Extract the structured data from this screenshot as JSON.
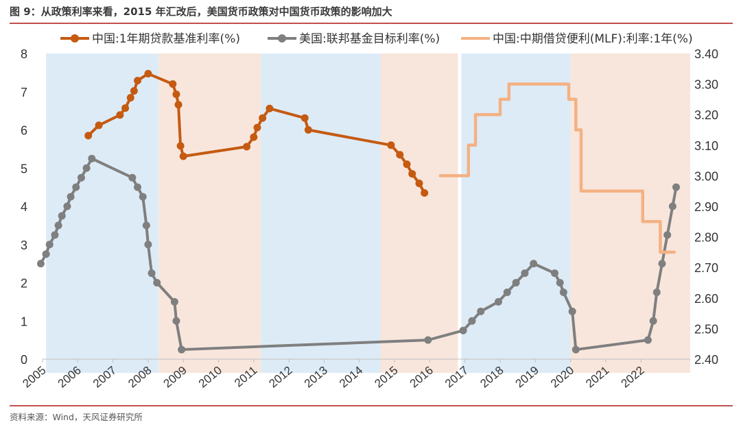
{
  "page": {
    "title": "图 9：从政策利率来看，2015 年汇改后，美国货币政策对中国货币政策的影响加大",
    "source": "资料来源：Wind，天风证券研究所"
  },
  "chart_data": {
    "type": "line",
    "title": "图 9：从政策利率来看，2015 年汇改后，美国货币政策对中国货币政策的影响加大",
    "x_ticks": [
      "2005",
      "2006",
      "2007",
      "2008",
      "2009",
      "2010",
      "2011",
      "2012",
      "2013",
      "2014",
      "2015",
      "2016",
      "2017",
      "2018",
      "2019",
      "2020",
      "2021",
      "2022"
    ],
    "y_left": {
      "range": [
        0,
        8
      ],
      "ticks": [
        "0",
        "1",
        "2",
        "3",
        "4",
        "5",
        "6",
        "7",
        "8"
      ]
    },
    "y_right": {
      "range": [
        2.4,
        3.4
      ],
      "ticks": [
        "2.40",
        "2.50",
        "2.60",
        "2.70",
        "2.80",
        "2.90",
        "3.00",
        "3.10",
        "3.20",
        "3.30",
        "3.40"
      ]
    },
    "shaded_periods": [
      {
        "start": 2005.1,
        "end": 2008.3,
        "color": "#ddebf7"
      },
      {
        "start": 2008.3,
        "end": 2011.2,
        "color": "#f8e6dc"
      },
      {
        "start": 2011.2,
        "end": 2014.6,
        "color": "#ddebf7"
      },
      {
        "start": 2014.6,
        "end": 2016.8,
        "color": "#f8e6dc"
      },
      {
        "start": 2016.9,
        "end": 2020.0,
        "color": "#ddebf7"
      },
      {
        "start": 2020.0,
        "end": 2023.4,
        "color": "#f8e6dc"
      }
    ],
    "legend_position": "top",
    "series": [
      {
        "name": "中国:1年期贷款基准利率(%)",
        "axis": "left",
        "color": "#c55a11",
        "markers": true,
        "points": [
          [
            2006.3,
            5.85
          ],
          [
            2006.6,
            6.12
          ],
          [
            2007.2,
            6.39
          ],
          [
            2007.35,
            6.57
          ],
          [
            2007.5,
            6.84
          ],
          [
            2007.6,
            7.02
          ],
          [
            2007.7,
            7.29
          ],
          [
            2008.0,
            7.47
          ],
          [
            2008.7,
            7.2
          ],
          [
            2008.8,
            6.93
          ],
          [
            2008.86,
            6.66
          ],
          [
            2008.92,
            5.58
          ],
          [
            2009.0,
            5.31
          ],
          [
            2010.8,
            5.56
          ],
          [
            2011.0,
            5.81
          ],
          [
            2011.1,
            6.06
          ],
          [
            2011.25,
            6.31
          ],
          [
            2011.45,
            6.56
          ],
          [
            2012.45,
            6.31
          ],
          [
            2012.55,
            6.0
          ],
          [
            2014.9,
            5.6
          ],
          [
            2015.15,
            5.35
          ],
          [
            2015.35,
            5.1
          ],
          [
            2015.5,
            4.85
          ],
          [
            2015.7,
            4.6
          ],
          [
            2015.85,
            4.35
          ]
        ]
      },
      {
        "name": "美国:联邦基金目标利率(%)",
        "axis": "left",
        "color": "#7f7f7f",
        "markers": true,
        "points": [
          [
            2004.95,
            2.5
          ],
          [
            2005.1,
            2.75
          ],
          [
            2005.2,
            3.0
          ],
          [
            2005.35,
            3.25
          ],
          [
            2005.45,
            3.5
          ],
          [
            2005.55,
            3.75
          ],
          [
            2005.7,
            4.0
          ],
          [
            2005.8,
            4.25
          ],
          [
            2005.95,
            4.5
          ],
          [
            2006.1,
            4.75
          ],
          [
            2006.25,
            5.0
          ],
          [
            2006.4,
            5.25
          ],
          [
            2007.55,
            4.75
          ],
          [
            2007.7,
            4.5
          ],
          [
            2007.85,
            4.25
          ],
          [
            2007.95,
            3.5
          ],
          [
            2008.0,
            3.0
          ],
          [
            2008.1,
            2.25
          ],
          [
            2008.25,
            2.0
          ],
          [
            2008.75,
            1.5
          ],
          [
            2008.8,
            1.0
          ],
          [
            2008.95,
            0.25
          ],
          [
            2015.95,
            0.5
          ],
          [
            2016.95,
            0.75
          ],
          [
            2017.2,
            1.0
          ],
          [
            2017.45,
            1.25
          ],
          [
            2017.95,
            1.5
          ],
          [
            2018.2,
            1.75
          ],
          [
            2018.45,
            2.0
          ],
          [
            2018.7,
            2.25
          ],
          [
            2018.95,
            2.5
          ],
          [
            2019.55,
            2.25
          ],
          [
            2019.7,
            2.0
          ],
          [
            2019.8,
            1.75
          ],
          [
            2020.05,
            1.25
          ],
          [
            2020.15,
            0.25
          ],
          [
            2022.2,
            0.5
          ],
          [
            2022.35,
            1.0
          ],
          [
            2022.45,
            1.75
          ],
          [
            2022.6,
            2.5
          ],
          [
            2022.75,
            3.25
          ],
          [
            2022.9,
            4.0
          ],
          [
            2023.0,
            4.5
          ]
        ]
      },
      {
        "name": "中国:中期借贷便利(MLF):利率:1年(%)",
        "axis": "right",
        "color": "#f4b183",
        "markers": false,
        "step": true,
        "points": [
          [
            2016.3,
            3.0
          ],
          [
            2017.1,
            3.1
          ],
          [
            2017.3,
            3.2
          ],
          [
            2018.0,
            3.25
          ],
          [
            2018.25,
            3.3
          ],
          [
            2019.95,
            3.25
          ],
          [
            2020.15,
            3.15
          ],
          [
            2020.3,
            2.95
          ],
          [
            2022.05,
            2.85
          ],
          [
            2022.55,
            2.75
          ],
          [
            2022.95,
            2.75
          ]
        ]
      }
    ]
  }
}
